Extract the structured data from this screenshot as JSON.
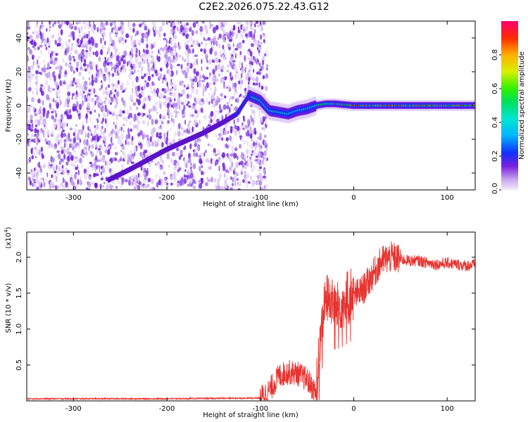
{
  "title": "C2E2.2026.075.22.43.G12",
  "chart_data": [
    {
      "type": "heatmap",
      "name": "spectrogram",
      "xlabel": "Height of straight line (km)",
      "ylabel": "Frequency (Hz)",
      "xlim": [
        -350,
        130
      ],
      "ylim": [
        -50,
        50
      ],
      "xticks": [
        -300,
        -200,
        -100,
        0,
        100
      ],
      "yticks": [
        -40,
        -20,
        0,
        20,
        40
      ],
      "noise_region_x": [
        -350,
        -100
      ],
      "tone_track": {
        "x": [
          -262,
          -240,
          -220,
          -200,
          -180,
          -160,
          -140,
          -125,
          -112,
          -100,
          -90,
          -80,
          -70,
          -60,
          -50,
          -40,
          -30,
          -20,
          0,
          20,
          40,
          60,
          80,
          100,
          130
        ],
        "y": [
          -44,
          -38,
          -32,
          -26,
          -21,
          -16,
          -10,
          -5,
          6,
          3,
          -3,
          -4,
          -5,
          -3,
          -2,
          0,
          1,
          1,
          0,
          0,
          0,
          0,
          0,
          0,
          0
        ]
      },
      "colorbar": {
        "label": "Normalized spectral amplitude",
        "range": [
          0,
          1
        ],
        "ticks": [
          "0.0",
          "0.2",
          "0.4",
          "0.6",
          "0.8"
        ],
        "tick_values": [
          0,
          0.2,
          0.4,
          0.6,
          0.8
        ]
      }
    },
    {
      "type": "line",
      "name": "snr",
      "xlabel": "Height of straight line (km)",
      "ylabel": "SNR (10 * v/v)",
      "scale_label": "(x10",
      "scale_exp": "4",
      "scale_close": ")",
      "xlim": [
        -350,
        130
      ],
      "ylim": [
        0,
        2.35
      ],
      "xticks": [
        -300,
        -200,
        -100,
        0,
        100
      ],
      "yticks": [
        0.5,
        1.0,
        1.5,
        2.0
      ],
      "ytick_labels": [
        "0.5",
        "1.0",
        "1.5",
        "2.0"
      ],
      "series": [
        {
          "name": "SNR",
          "color": "#e8332f",
          "x": [
            -350,
            -200,
            -100,
            -90,
            -80,
            -70,
            -60,
            -50,
            -45,
            -40,
            -35,
            -30,
            -25,
            -20,
            -10,
            0,
            10,
            20,
            30,
            40,
            50,
            60,
            70,
            80,
            90,
            100,
            110,
            120,
            130
          ],
          "y": [
            0.03,
            0.03,
            0.04,
            0.15,
            0.35,
            0.4,
            0.38,
            0.3,
            0.2,
            0.1,
            0.9,
            1.45,
            1.4,
            1.3,
            1.35,
            1.45,
            1.55,
            1.75,
            1.95,
            2.0,
            1.97,
            1.95,
            1.95,
            1.92,
            1.9,
            1.92,
            1.9,
            1.88,
            1.9
          ]
        }
      ]
    }
  ]
}
